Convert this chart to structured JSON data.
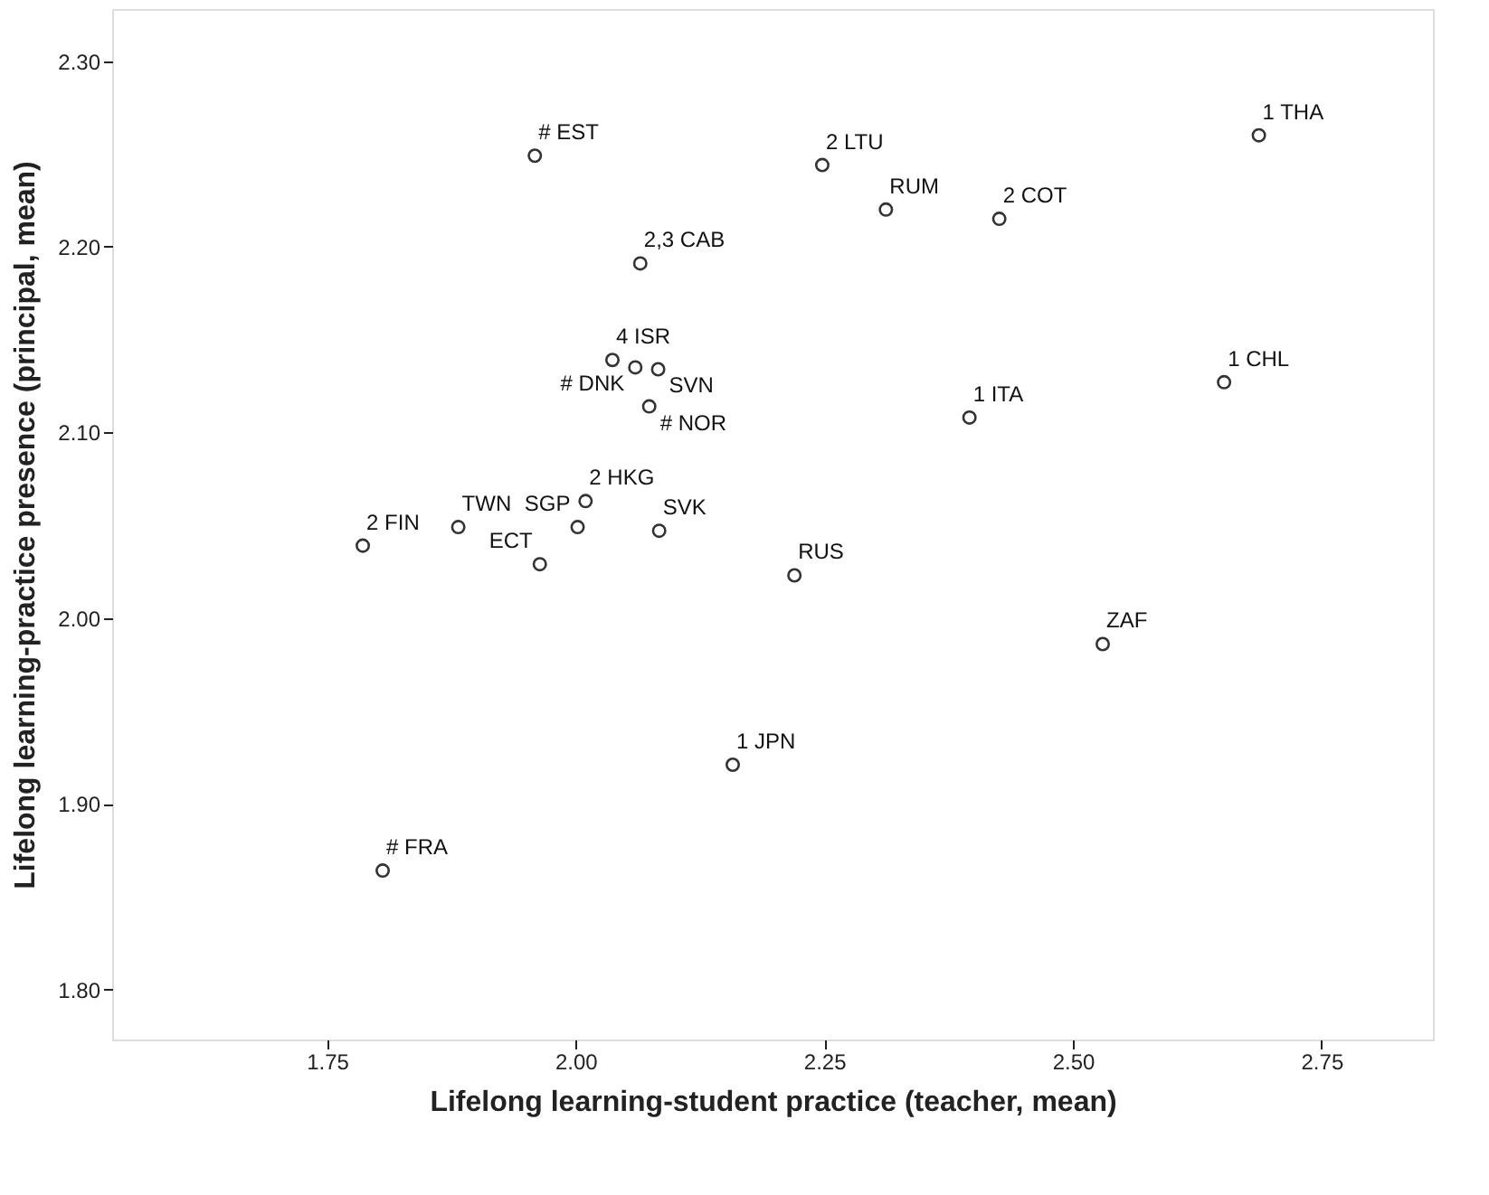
{
  "chart_data": {
    "type": "scatter",
    "xlabel": "Lifelong learning-student practice (teacher, mean)",
    "ylabel": "Lifelong learning-practice presence (principal, mean)",
    "xlim": [
      1.534,
      2.862
    ],
    "ylim": [
      1.773,
      2.328
    ],
    "xticks": [
      1.75,
      {
        "value": 2.0,
        "label": "2.00"
      },
      2.25,
      {
        "value": 2.5,
        "label": "2.50"
      },
      2.75
    ],
    "yticks": [
      {
        "value": 1.8,
        "label": "1.80"
      },
      {
        "value": 1.9,
        "label": "1.90"
      },
      {
        "value": 2.0,
        "label": "2.00"
      },
      {
        "value": 2.1,
        "label": "2.10"
      },
      {
        "value": 2.2,
        "label": "2.20"
      },
      {
        "value": 2.3,
        "label": "2.30"
      }
    ],
    "grid": false,
    "marker": "circle",
    "series": [
      {
        "color": "#333333",
        "x": [
          1.959,
          2.065,
          2.037,
          2.06,
          2.083,
          2.074,
          2.01,
          2.002,
          1.964,
          2.084,
          1.786,
          1.882,
          1.806,
          2.248,
          2.312,
          2.426,
          2.687,
          2.652,
          2.396,
          2.22,
          2.53,
          2.158
        ],
        "values": [
          2.249,
          2.191,
          2.139,
          2.135,
          2.134,
          2.114,
          2.063,
          2.049,
          2.029,
          2.047,
          2.039,
          2.049,
          1.864,
          2.244,
          2.22,
          2.215,
          2.26,
          2.127,
          2.108,
          2.023,
          1.986,
          1.921
        ]
      }
    ],
    "annotations": [
      {
        "text": "# EST",
        "x": 1.959,
        "y": 2.249
      },
      {
        "text": "2,3 CAB",
        "x": 2.065,
        "y": 2.191
      },
      {
        "text": "4 ISR",
        "x": 2.037,
        "y": 2.139
      },
      {
        "text": "# DNK",
        "x": 2.06,
        "y": 2.135
      },
      {
        "text": "SVN",
        "x": 2.083,
        "y": 2.134
      },
      {
        "text": "# NOR",
        "x": 2.074,
        "y": 2.114
      },
      {
        "text": "2 HKG",
        "x": 2.01,
        "y": 2.063
      },
      {
        "text": "SGP",
        "x": 2.002,
        "y": 2.049
      },
      {
        "text": "ECT",
        "x": 1.964,
        "y": 2.029
      },
      {
        "text": "SVK",
        "x": 2.084,
        "y": 2.047
      },
      {
        "text": "2 FIN",
        "x": 1.786,
        "y": 2.039
      },
      {
        "text": "TWN",
        "x": 1.882,
        "y": 2.049
      },
      {
        "text": "# FRA",
        "x": 1.806,
        "y": 1.864
      },
      {
        "text": "2 LTU",
        "x": 2.248,
        "y": 2.244
      },
      {
        "text": "RUM",
        "x": 2.312,
        "y": 2.22
      },
      {
        "text": "2 COT",
        "x": 2.426,
        "y": 2.215
      },
      {
        "text": "1 THA",
        "x": 2.687,
        "y": 2.26
      },
      {
        "text": "1 CHL",
        "x": 2.652,
        "y": 2.127
      },
      {
        "text": "1 ITA",
        "x": 2.396,
        "y": 2.108
      },
      {
        "text": "RUS",
        "x": 2.22,
        "y": 2.023
      },
      {
        "text": "ZAF",
        "x": 2.53,
        "y": 1.986
      },
      {
        "text": "1 JPN",
        "x": 2.158,
        "y": 1.921
      }
    ]
  }
}
